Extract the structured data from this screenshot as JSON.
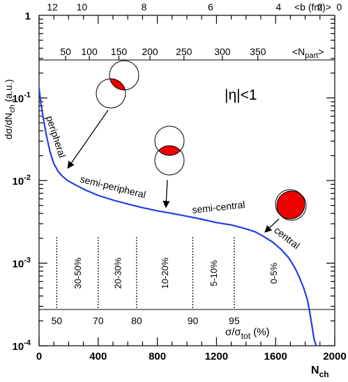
{
  "chart_data": {
    "type": "line",
    "x_axis": {
      "label": "N",
      "label_sub": "ch",
      "lim": [
        0,
        2000
      ],
      "major_ticks": [
        0,
        400,
        800,
        1200,
        1600,
        2000
      ],
      "tick_labels": [
        "0",
        "400",
        "800",
        "1200",
        "1600",
        "2000"
      ]
    },
    "y_axis": {
      "label": "dσ/dN",
      "label_sub": "ch",
      "label_suffix": " (a.u.)",
      "scale": "log",
      "lim": [
        0.0001,
        1
      ],
      "major_ticks": [
        0.0001,
        0.001,
        0.01,
        0.1,
        1
      ],
      "tick_label_base": [
        "10",
        "10",
        "10",
        "10",
        "1"
      ],
      "tick_label_exp": [
        "-4",
        "-3",
        "-2",
        "-1",
        ""
      ]
    },
    "top_axis_b": {
      "title": "<b (fm)>",
      "labels": [
        "12",
        "10",
        "8",
        "6",
        "4",
        "2",
        "0"
      ],
      "x": [
        90,
        290,
        710,
        1160,
        1620,
        1900,
        2030
      ]
    },
    "top_axis_npart": {
      "title": "<N",
      "title_sub": "part",
      "title_suffix": ">",
      "labels": [
        "50",
        "100",
        "150",
        "200",
        "250",
        "300",
        "350"
      ],
      "x": [
        180,
        340,
        540,
        750,
        980,
        1240,
        1480
      ]
    },
    "percentile_axis": {
      "title": "σ/σ",
      "title_sub": "tot",
      "title_suffix": " (%)",
      "labels": [
        "50",
        "70",
        "80",
        "90",
        "95"
      ],
      "x": [
        120,
        400,
        660,
        1040,
        1320
      ]
    },
    "centrality_bins": [
      "30-50%",
      "20-30%",
      "10-20%",
      "5-10%",
      "0-5%"
    ],
    "series": [
      {
        "color": "#1f3fe0",
        "x": [
          0,
          5,
          15,
          30,
          50,
          75,
          100,
          130,
          160,
          200,
          260,
          320,
          400,
          500,
          600,
          700,
          800,
          900,
          1000,
          1100,
          1200,
          1300,
          1400,
          1460,
          1520,
          1580,
          1640,
          1690,
          1730,
          1760,
          1790,
          1815,
          1830,
          1845,
          1860,
          1875
        ],
        "y": [
          0.13,
          0.11,
          0.08,
          0.055,
          0.035,
          0.022,
          0.016,
          0.0128,
          0.0112,
          0.0098,
          0.0086,
          0.0076,
          0.0066,
          0.0058,
          0.0052,
          0.0047,
          0.0043,
          0.004,
          0.0037,
          0.0034,
          0.0031,
          0.0029,
          0.0026,
          0.0024,
          0.0021,
          0.0018,
          0.00145,
          0.00115,
          0.00088,
          0.00068,
          0.0005,
          0.00036,
          0.00026,
          0.00018,
          0.00012,
          8.5e-05
        ]
      }
    ],
    "annotations": {
      "eta_cut": "|η|<1",
      "peripheral": "peripheral",
      "semi_peripheral": "semi-peripheral",
      "semi_central": "semi-central",
      "central": "central"
    },
    "overlap_fill_color": "#ee0000"
  }
}
